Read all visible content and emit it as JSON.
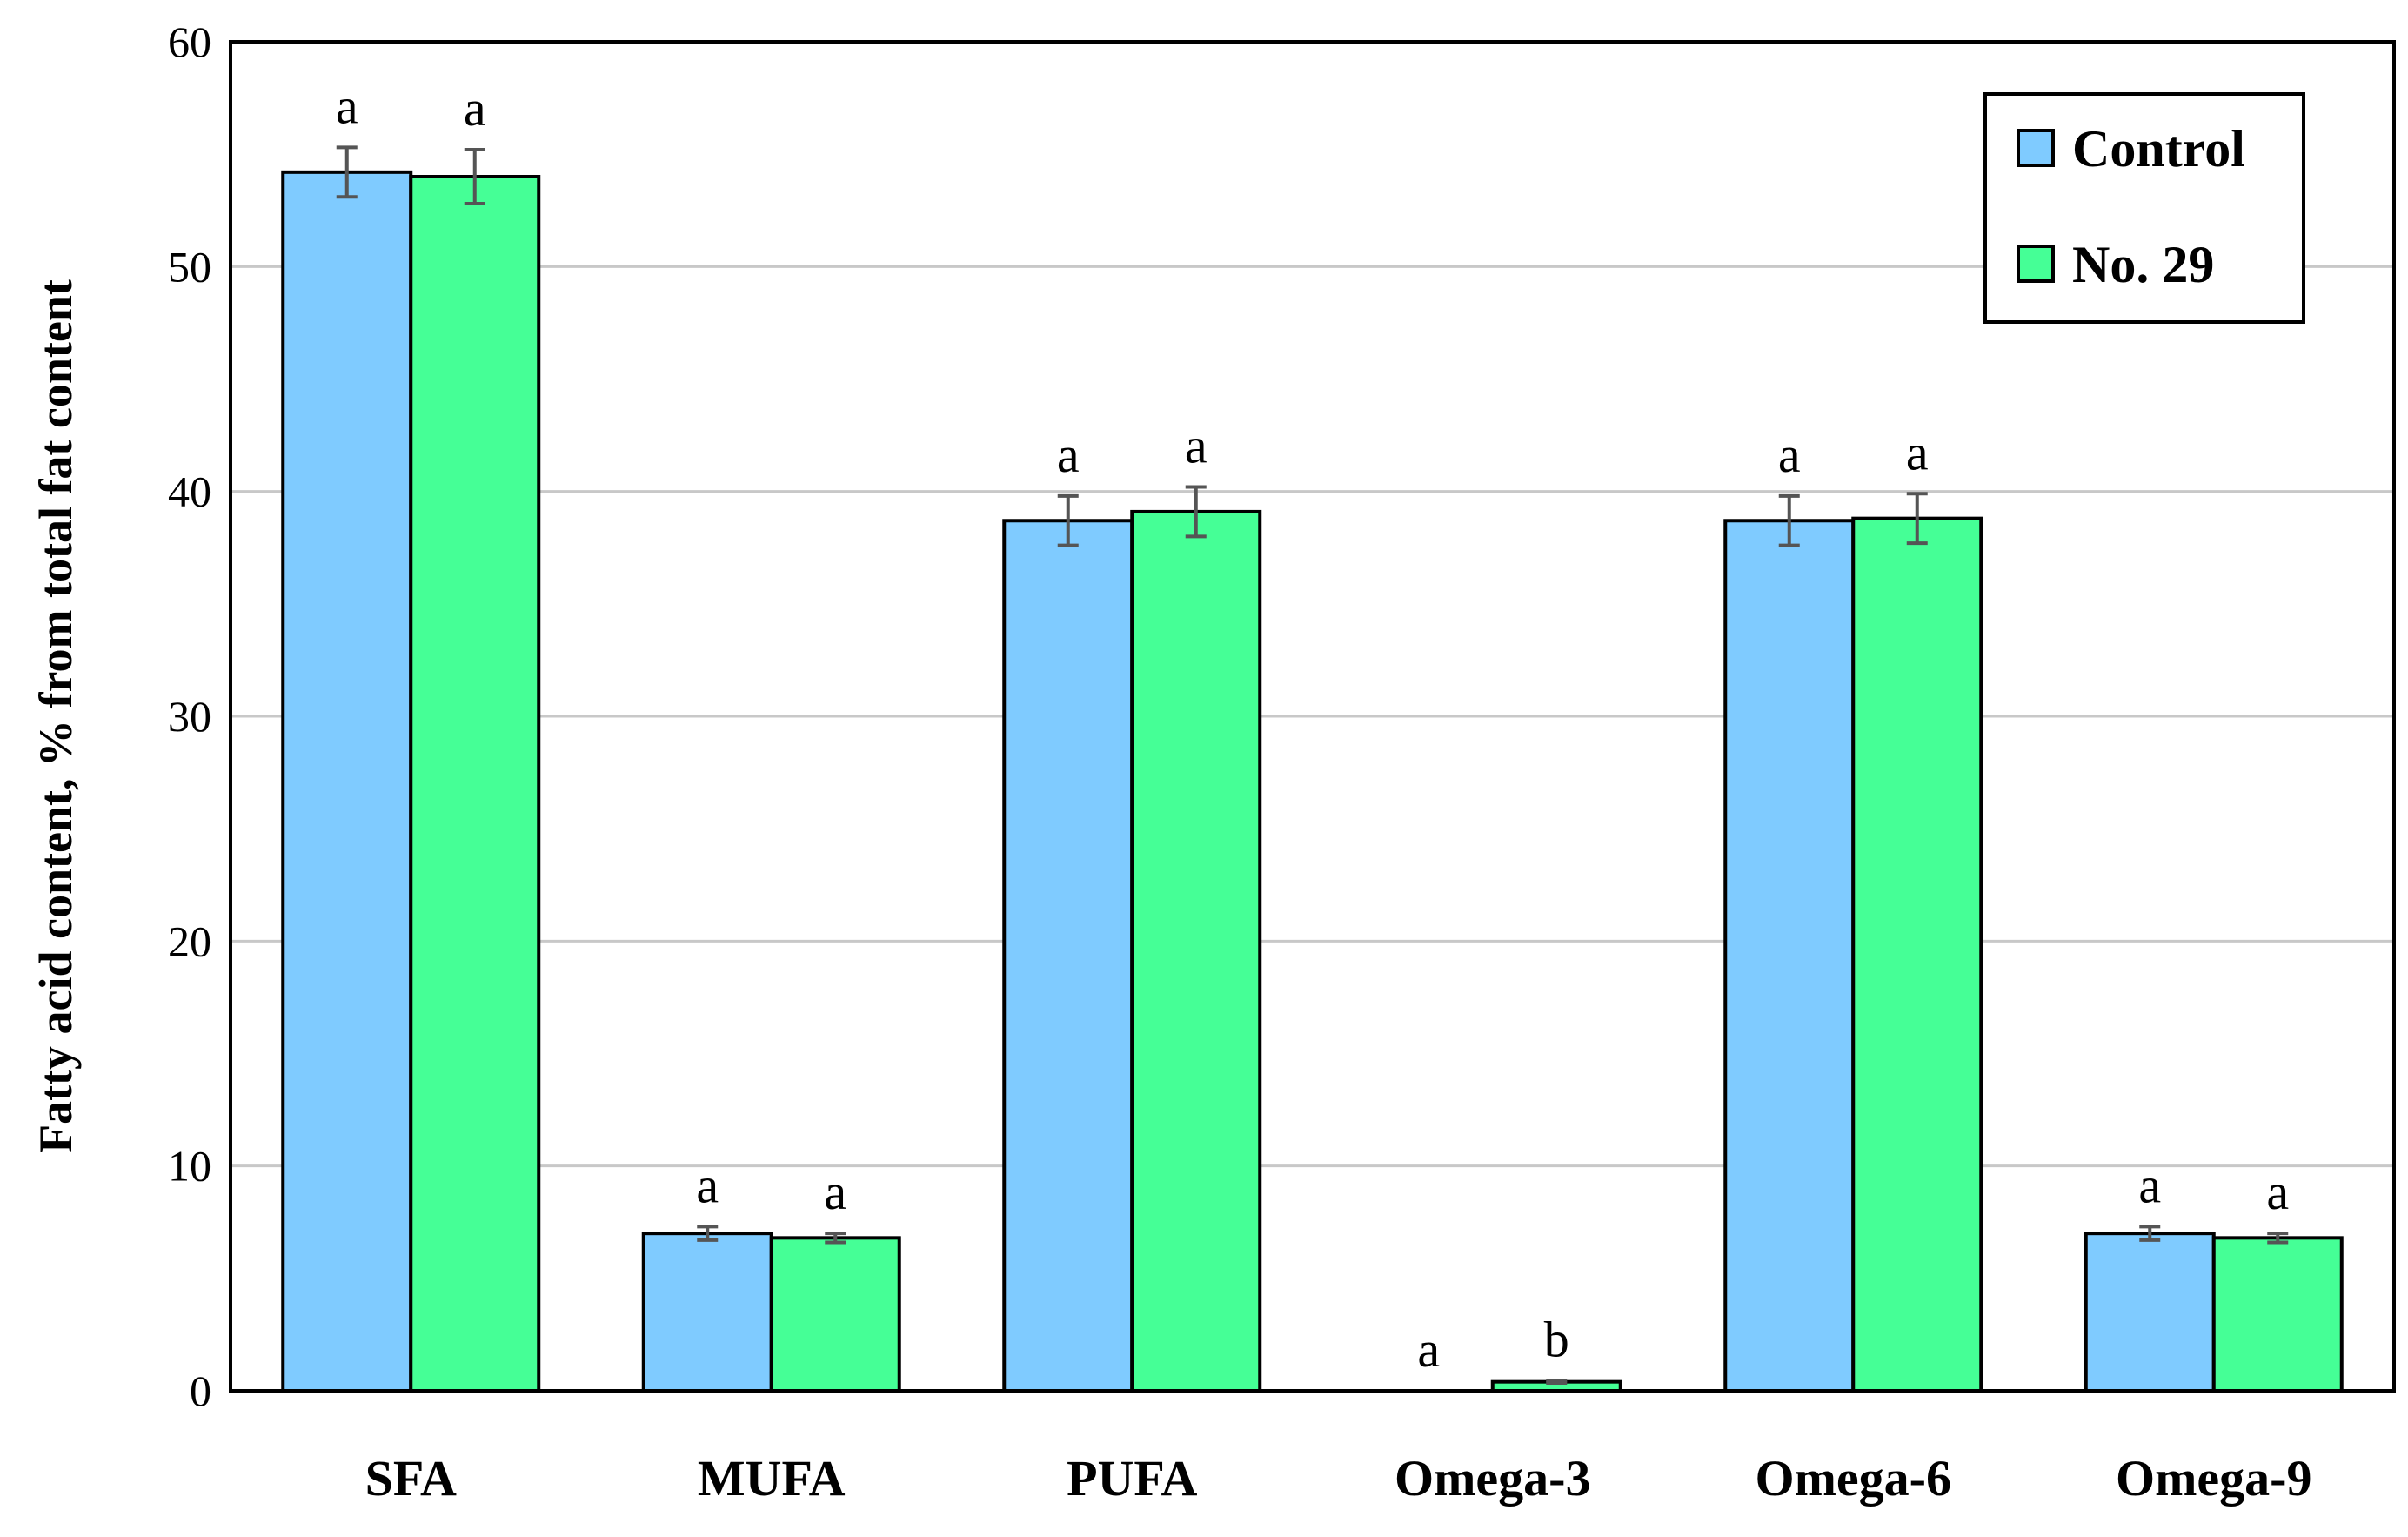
{
  "chart_data": {
    "type": "bar",
    "title": "",
    "xlabel": "",
    "ylabel": "Fatty acid content, % from total fat content",
    "ylim": [
      0,
      60
    ],
    "yticks": [
      0,
      10,
      20,
      30,
      40,
      50,
      60
    ],
    "grid": true,
    "legend_position": "top-right",
    "categories": [
      "SFA",
      "MUFA",
      "PUFA",
      "Omega-3",
      "Omega-6",
      "Omega-9"
    ],
    "series": [
      {
        "name": "Control",
        "color": "#7FCBFF",
        "values": [
          54.2,
          7.0,
          38.7,
          0.0,
          38.7,
          7.0
        ],
        "errors": [
          1.1,
          0.3,
          1.1,
          0.0,
          1.1,
          0.3
        ],
        "significance": [
          "a",
          "a",
          "a",
          "a",
          "a",
          "a"
        ]
      },
      {
        "name": "No. 29",
        "color": "#45FF96",
        "values": [
          54.0,
          6.8,
          39.1,
          0.4,
          38.8,
          6.8
        ],
        "errors": [
          1.2,
          0.2,
          1.1,
          0.05,
          1.1,
          0.2
        ],
        "significance": [
          "a",
          "a",
          "a",
          "b",
          "a",
          "a"
        ]
      }
    ]
  }
}
